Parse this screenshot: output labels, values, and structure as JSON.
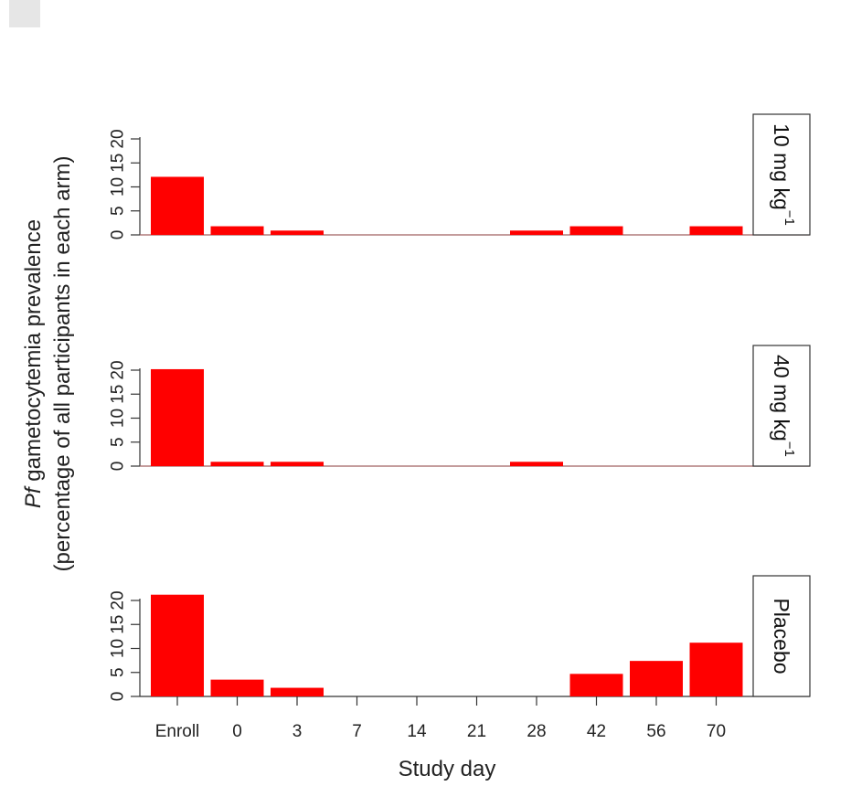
{
  "chart_data": {
    "type": "bar",
    "categories": [
      "Enroll",
      "0",
      "3",
      "7",
      "14",
      "21",
      "28",
      "42",
      "56",
      "70"
    ],
    "xlabel": "Study day",
    "ylabel_italic": "Pf",
    "ylabel_line1": " gametocytemia prevalence",
    "ylabel_line2": "(percentage of all participants in each arm)",
    "ylim": [
      0,
      20
    ],
    "yticks": [
      0,
      5,
      10,
      15,
      20
    ],
    "bar_color": "#ff0000",
    "panels": [
      {
        "label_main": "10 mg kg",
        "label_sup": "−1",
        "values": [
          12.1,
          1.8,
          0.9,
          0,
          0,
          0,
          0.9,
          1.8,
          0,
          1.8
        ]
      },
      {
        "label_main": "40 mg kg",
        "label_sup": "−1",
        "values": [
          20.2,
          0.9,
          0.9,
          0,
          0,
          0,
          0.9,
          0,
          0,
          0
        ]
      },
      {
        "label_main": "Placebo",
        "label_sup": "",
        "values": [
          21.2,
          3.5,
          1.8,
          0,
          0,
          0,
          0,
          4.7,
          7.4,
          11.2
        ]
      }
    ]
  }
}
